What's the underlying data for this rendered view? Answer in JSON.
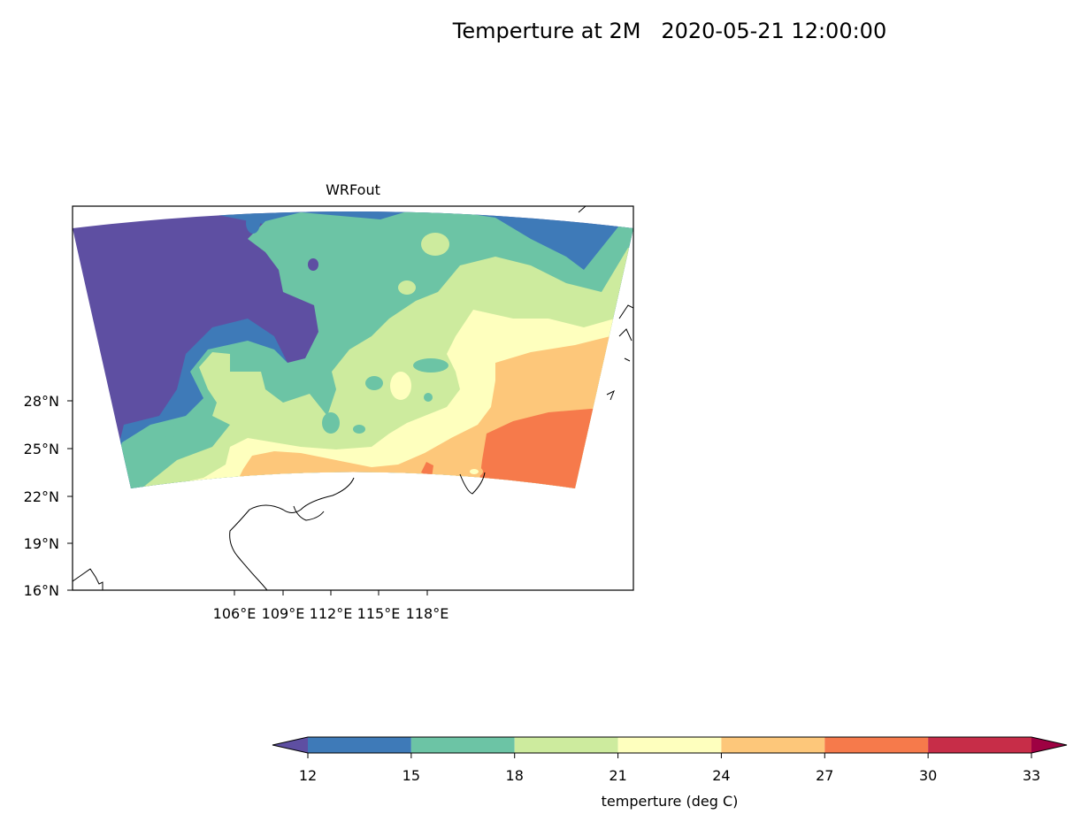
{
  "figure": {
    "suptitle": "Temperture at 2M   2020-05-21 12:00:00",
    "subplot_title": "WRFout"
  },
  "map": {
    "lat_ticks": [
      "28°N",
      "25°N",
      "22°N",
      "19°N",
      "16°N"
    ],
    "lon_ticks": [
      "106°E",
      "109°E",
      "112°E",
      "115°E",
      "118°E"
    ],
    "field": "2 m temperature",
    "colormap": "Spectral_r",
    "domain_fill_levels": [
      {
        "range": "< 12",
        "color": "#5e4fa2"
      },
      {
        "range": "12–15",
        "color": "#3e7ab8"
      },
      {
        "range": "15–18",
        "color": "#6cc4a5"
      },
      {
        "range": "18–21",
        "color": "#cdeb9e"
      },
      {
        "range": "21–24",
        "color": "#feffbe"
      },
      {
        "range": "24–27",
        "color": "#fdc77a"
      },
      {
        "range": "27–30",
        "color": "#f67a4b"
      },
      {
        "range": "30–33",
        "color": "#c72d48"
      }
    ]
  },
  "colorbar": {
    "label": "temperture (deg C)",
    "ticks": [
      "12",
      "15",
      "18",
      "21",
      "24",
      "27",
      "30",
      "33"
    ],
    "under_color": "#5e4fa2",
    "over_color": "#9e0142",
    "segment_colors": [
      "#3e7ab8",
      "#6cc4a5",
      "#cdeb9e",
      "#feffbe",
      "#fdc77a",
      "#f67a4b",
      "#c72d48"
    ],
    "extend": "both"
  }
}
